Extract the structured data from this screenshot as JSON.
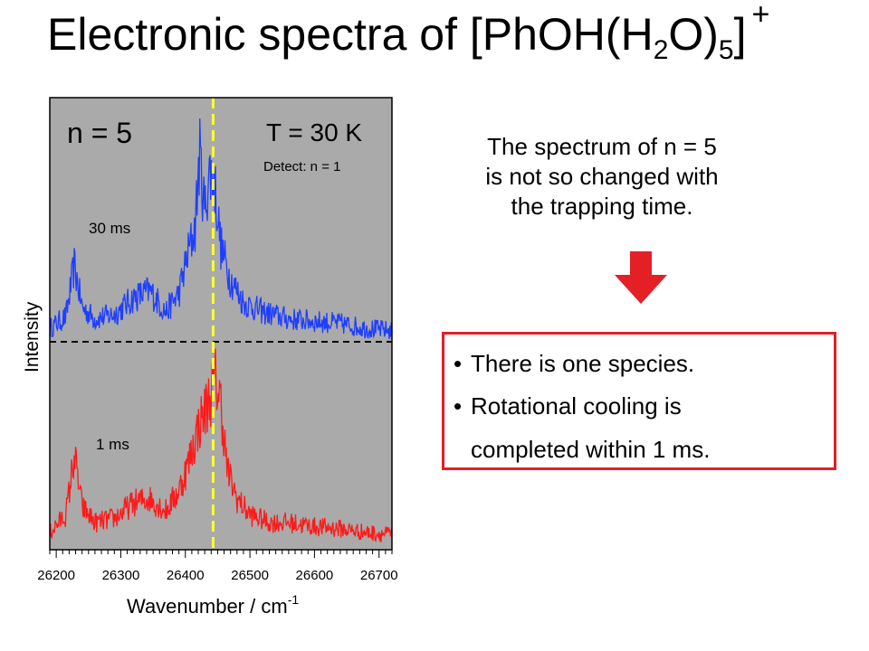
{
  "slide": {
    "title_main": "Electronic spectra of [PhOH(H",
    "title_sub1": "2",
    "title_mid": "O)",
    "title_sub2": "5",
    "title_close": "]",
    "title_sup": "+",
    "description": [
      "The spectrum of n = 5",
      "is not so changed with",
      "the trapping time."
    ],
    "bullets": [
      "There is one species.",
      "Rotational cooling is",
      "completed within 1 ms."
    ],
    "bullet_symbol": "•",
    "arrow_color": "#e41f26",
    "box_border_color": "#e41f26"
  },
  "chart_data": {
    "type": "line",
    "xlabel_main": "Wavenumber / cm",
    "xlabel_sup": "-1",
    "ylabel": "Intensity",
    "x_ticks": [
      26200,
      26300,
      26400,
      26500,
      26600,
      26700
    ],
    "xlim": [
      26190,
      26720
    ],
    "panel_label": "n = 5",
    "temperature_label": "T = 30 K",
    "detect_label": "Detect: n = 1",
    "marker_line_x": 26443,
    "marker_line_color": "#ffff33",
    "background_color": "#aaaaaa",
    "series": [
      {
        "name": "30 ms",
        "color": "#1f3fff",
        "x": [
          26190,
          26215,
          26228,
          26240,
          26260,
          26290,
          26320,
          26345,
          26370,
          26390,
          26405,
          26415,
          26422,
          26430,
          26437,
          26445,
          26455,
          26470,
          26490,
          26520,
          26560,
          26600,
          26640,
          26680,
          26720
        ],
        "y": [
          0.05,
          0.1,
          0.32,
          0.14,
          0.09,
          0.11,
          0.18,
          0.21,
          0.12,
          0.2,
          0.38,
          0.48,
          0.8,
          0.55,
          0.72,
          0.68,
          0.4,
          0.26,
          0.16,
          0.12,
          0.09,
          0.08,
          0.07,
          0.05,
          0.04
        ]
      },
      {
        "name": "1 ms",
        "color": "#ff1a1a",
        "x": [
          26190,
          26215,
          26228,
          26240,
          26260,
          26290,
          26320,
          26345,
          26370,
          26390,
          26405,
          26420,
          26430,
          26440,
          26447,
          26455,
          26465,
          26480,
          26500,
          26530,
          26560,
          26600,
          26640,
          26680,
          26720
        ],
        "y": [
          0.05,
          0.14,
          0.44,
          0.18,
          0.1,
          0.12,
          0.2,
          0.22,
          0.16,
          0.26,
          0.4,
          0.58,
          0.66,
          0.75,
          0.82,
          0.7,
          0.36,
          0.22,
          0.14,
          0.1,
          0.1,
          0.08,
          0.07,
          0.05,
          0.04
        ]
      }
    ]
  }
}
